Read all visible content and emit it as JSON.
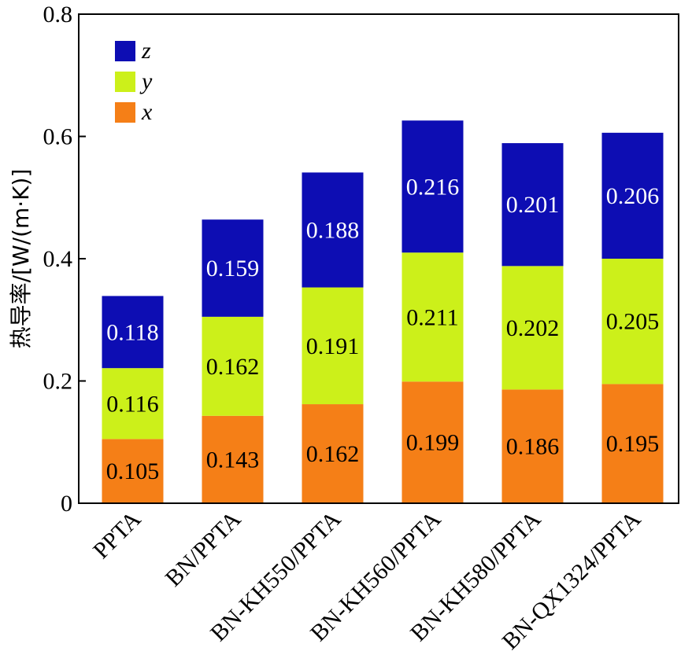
{
  "chart_data": {
    "type": "bar",
    "stacked": true,
    "title": "",
    "xlabel": "",
    "ylabel": "热导率/[W/(m·K)]",
    "ylim": [
      0,
      0.8
    ],
    "yticks": [
      0,
      0.2,
      0.4,
      0.6,
      0.8
    ],
    "ytick_labels": [
      "0",
      "0.2",
      "0.4",
      "0.6",
      "0.8"
    ],
    "categories": [
      "PPTA",
      "BN/PPTA",
      "BN-KH550/PPTA",
      "BN-KH560/PPTA",
      "BN-KH580/PPTA",
      "BN-QX1324/PPTA"
    ],
    "series": [
      {
        "name": "x",
        "color": "#f57f17",
        "label_color": "#000000",
        "values": [
          0.105,
          0.143,
          0.162,
          0.199,
          0.186,
          0.195
        ],
        "labels": [
          "0.105",
          "0.143",
          "0.162",
          "0.199",
          "0.186",
          "0.195"
        ]
      },
      {
        "name": "y",
        "color": "#ccf01a",
        "label_color": "#000000",
        "values": [
          0.116,
          0.162,
          0.191,
          0.211,
          0.202,
          0.205
        ],
        "labels": [
          "0.116",
          "0.162",
          "0.191",
          "0.211",
          "0.202",
          "0.205"
        ]
      },
      {
        "name": "z",
        "color": "#0d0db3",
        "label_color": "#ffffff",
        "values": [
          0.118,
          0.159,
          0.188,
          0.216,
          0.201,
          0.206
        ],
        "labels": [
          "0.118",
          "0.159",
          "0.188",
          "0.216",
          "0.201",
          "0.206"
        ]
      }
    ],
    "legend": {
      "position": "top-left",
      "order": [
        "z",
        "y",
        "x"
      ]
    },
    "grid": false
  }
}
